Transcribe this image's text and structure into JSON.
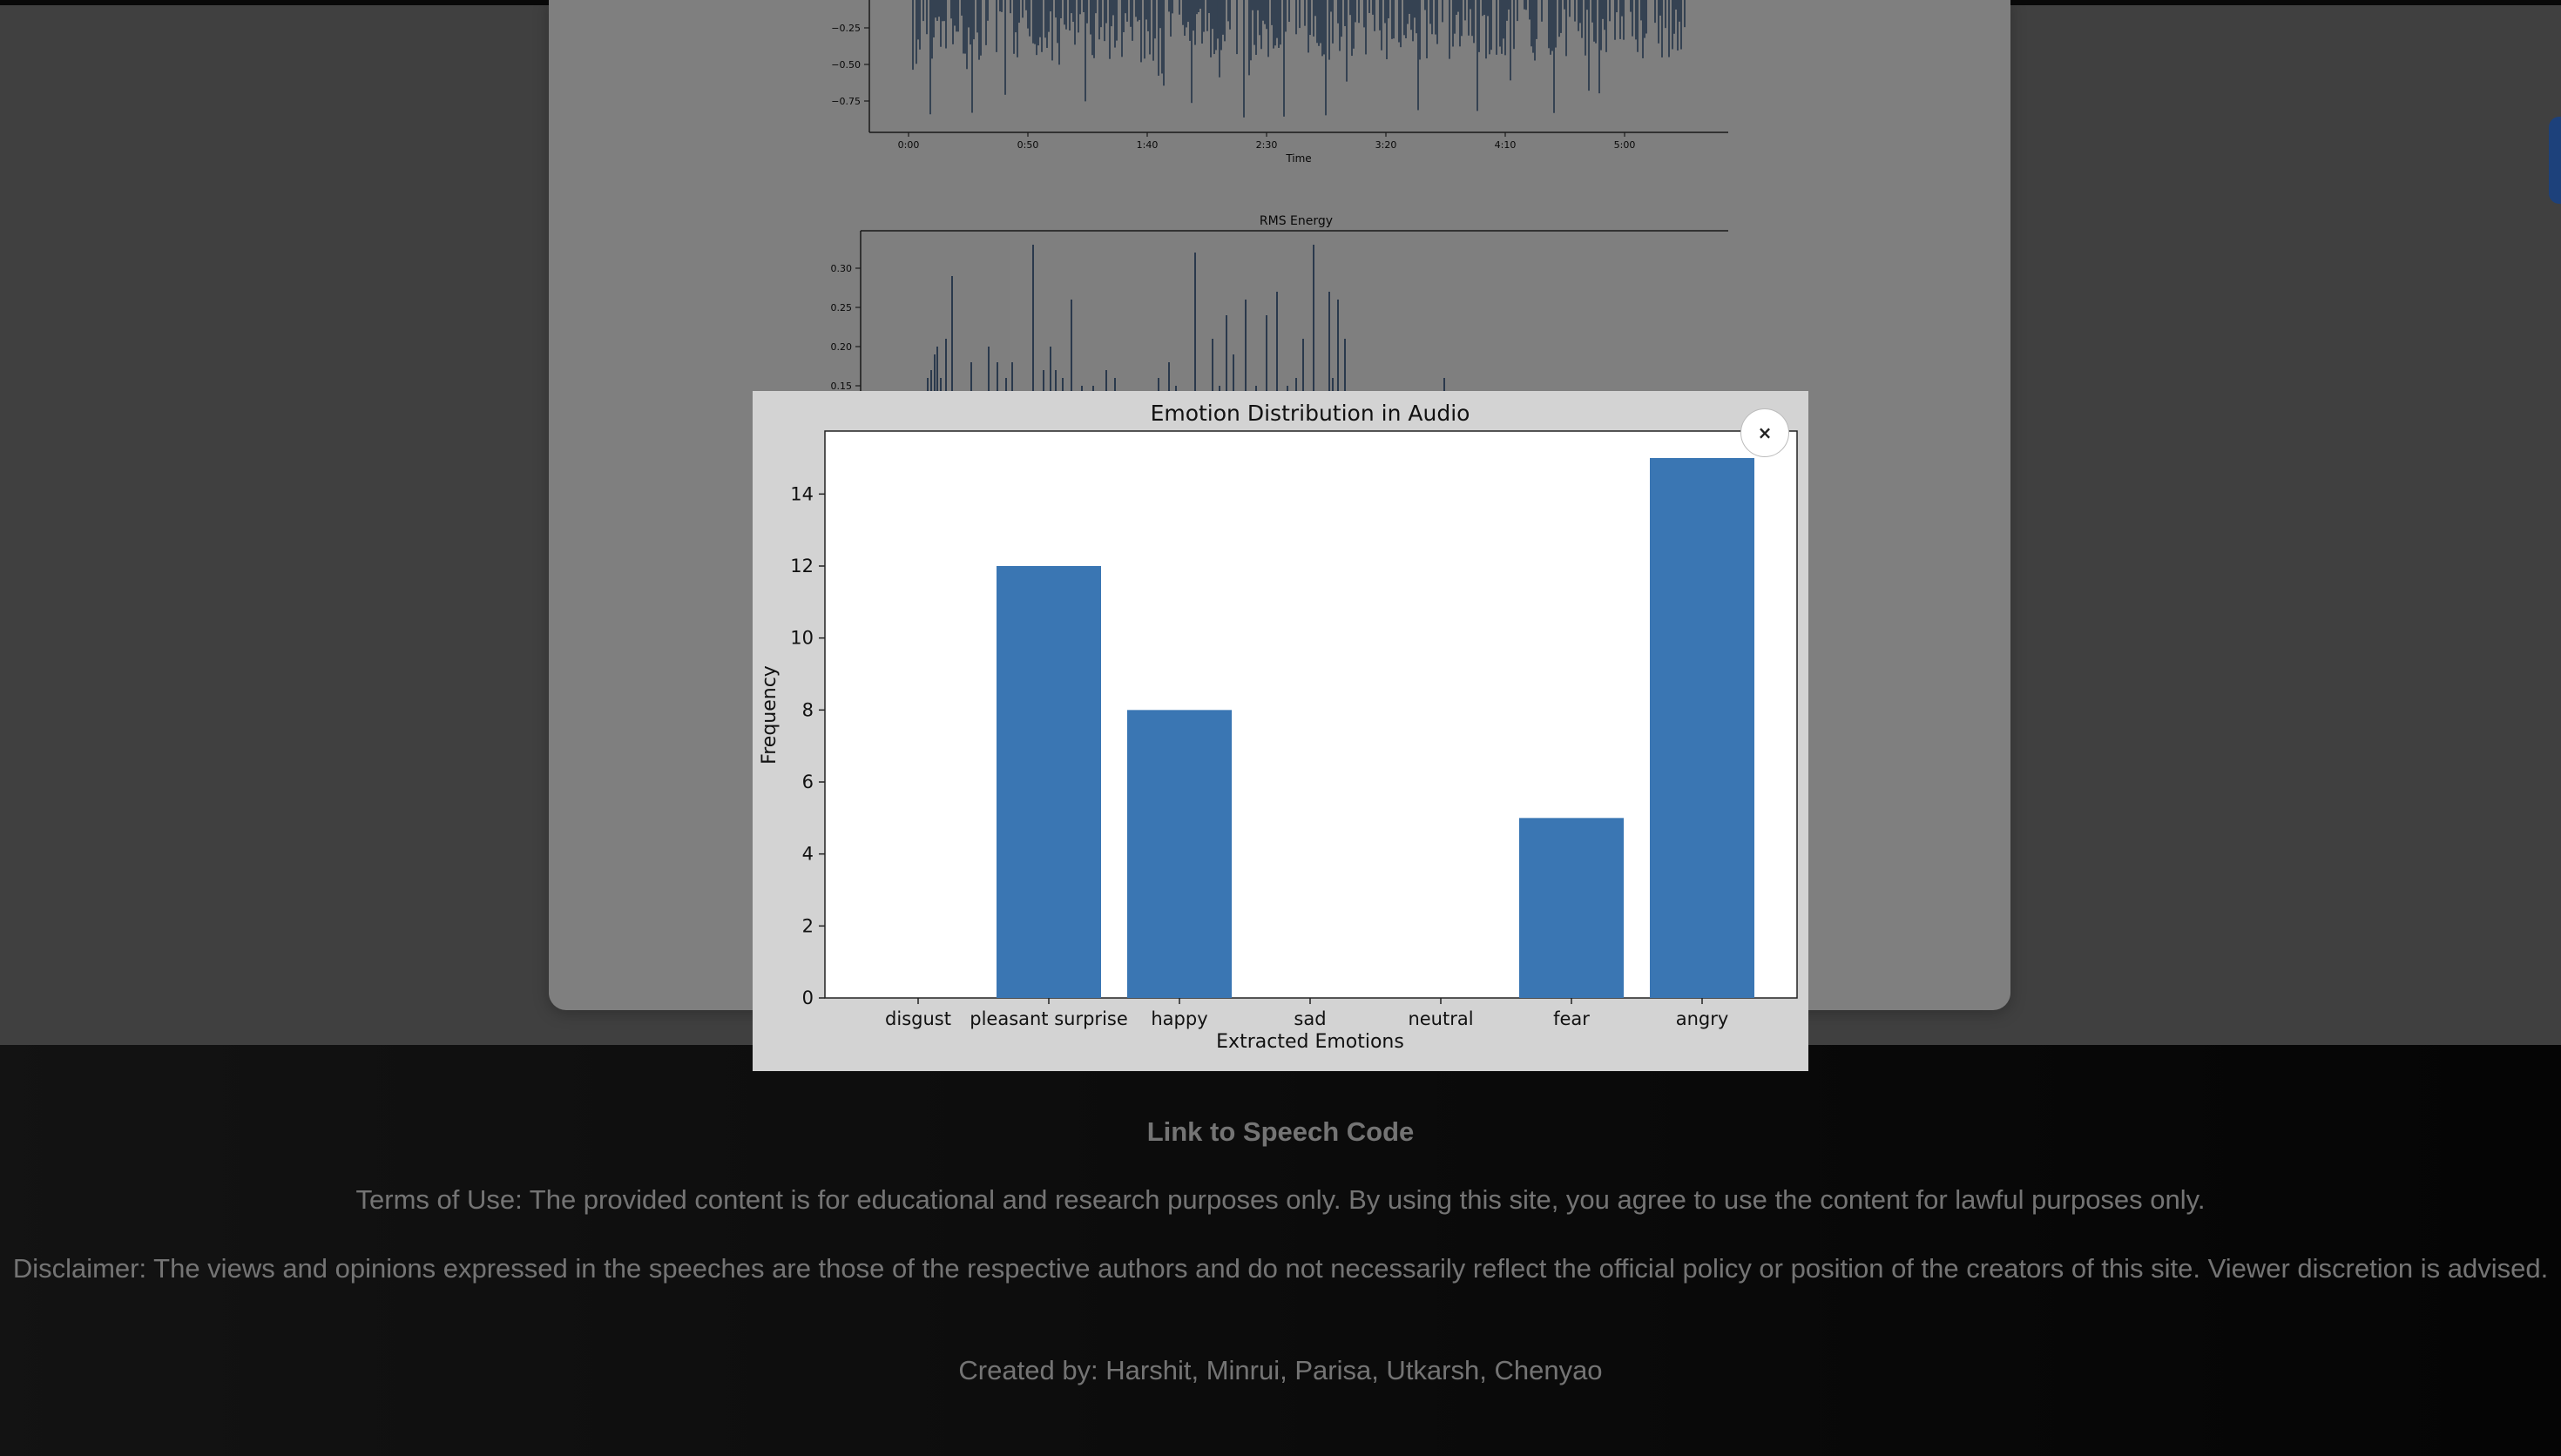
{
  "background_card": {
    "waveform": {
      "ylabels": [
        "−0.25",
        "−0.50",
        "−0.75"
      ],
      "xlabels": [
        "0:00",
        "0:50",
        "1:40",
        "2:30",
        "3:20",
        "4:10",
        "5:00"
      ],
      "xlabel": "Time"
    },
    "rms": {
      "title": "RMS Energy",
      "ylabels": [
        "0.30",
        "0.25",
        "0.20",
        "0.15"
      ]
    }
  },
  "modal": {
    "close_label": "×"
  },
  "chart_data": {
    "type": "bar",
    "title": "Emotion Distribution in Audio",
    "xlabel": "Extracted Emotions",
    "ylabel": "Frequency",
    "categories": [
      "disgust",
      "pleasant surprise",
      "happy",
      "sad",
      "neutral",
      "fear",
      "angry"
    ],
    "values": [
      0,
      12,
      8,
      0,
      0,
      5,
      15
    ],
    "ylim": [
      0,
      15.75
    ],
    "yticks": [
      0,
      2,
      4,
      6,
      8,
      10,
      12,
      14
    ],
    "bar_color": "#3a76b3",
    "grid": false
  },
  "footer": {
    "link_text": "Link to Speech Code",
    "terms": "Terms of Use: The provided content is for educational and research purposes only. By using this site, you agree to use the content for lawful purposes only.",
    "disclaimer": "Disclaimer: The views and opinions expressed in the speeches are those of the respective authors and do not necessarily reflect the official policy or position of the creators of this site. Viewer discretion is advised.",
    "credits": "Created by: Harshit, Minrui, Parisa, Utkarsh, Chenyao"
  },
  "colors": {
    "accent_tab": "#3b82f6",
    "plot_line": "#2b4f7e"
  }
}
